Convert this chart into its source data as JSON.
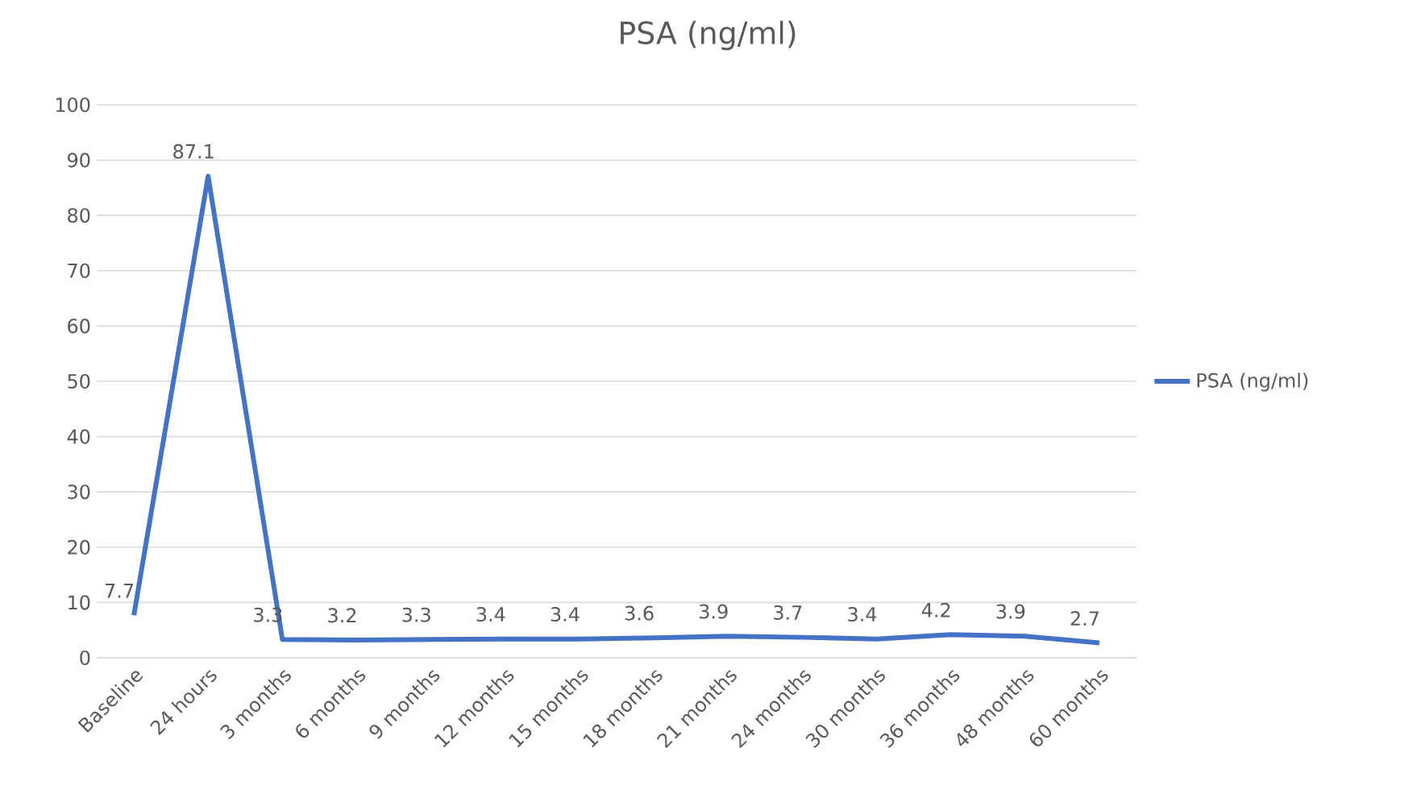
{
  "chart_data": {
    "type": "line",
    "title": "PSA (ng/ml)",
    "categories": [
      "Baseline",
      "24 hours",
      "3 months",
      "6 months",
      "9 months",
      "12 months",
      "15 months",
      "18 months",
      "21 months",
      "24 months",
      "30 months",
      "36 months",
      "48 months",
      "60 months"
    ],
    "series": [
      {
        "name": "PSA (ng/ml)",
        "color": "#4472c4",
        "values": [
          7.7,
          87.1,
          3.3,
          3.2,
          3.3,
          3.4,
          3.4,
          3.6,
          3.9,
          3.7,
          3.4,
          4.2,
          3.9,
          2.7
        ]
      }
    ],
    "ylim": [
      0,
      100
    ],
    "yticks": [
      0,
      10,
      20,
      30,
      40,
      50,
      60,
      70,
      80,
      90,
      100
    ],
    "grid": "y",
    "legend": "right",
    "data_labels": true,
    "marker": "none",
    "line_style": "solid"
  }
}
